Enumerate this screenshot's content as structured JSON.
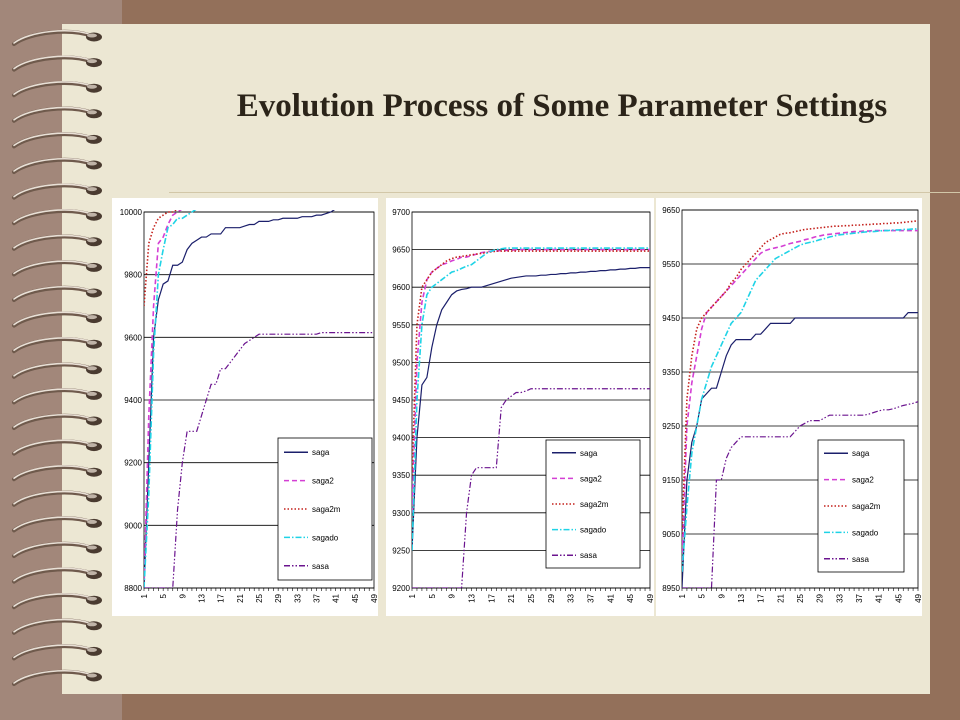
{
  "slide": {
    "title": "Evolution Process of Some Parameter Settings"
  },
  "colors": {
    "saga": "#1b1f6b",
    "saga2": "#d43fd4",
    "saga2m": "#c4211c",
    "sagado": "#1fd3e6",
    "sasa": "#6b148f"
  },
  "chart_data": [
    {
      "type": "line",
      "x": [
        1,
        2,
        3,
        4,
        5,
        6,
        7,
        8,
        9,
        10,
        11,
        12,
        13,
        14,
        15,
        16,
        17,
        18,
        19,
        20,
        21,
        22,
        23,
        24,
        25,
        26,
        27,
        28,
        29,
        30,
        31,
        32,
        33,
        34,
        35,
        36,
        37,
        38,
        39,
        40,
        41,
        42,
        43,
        44,
        45,
        46,
        47,
        48,
        49
      ],
      "x_ticks": [
        "1",
        "5",
        "9",
        "13",
        "17",
        "21",
        "25",
        "29",
        "33",
        "37",
        "41",
        "45",
        "49"
      ],
      "ylim": [
        8800,
        10000
      ],
      "y_ticks": [
        "8800",
        "9000",
        "9200",
        "9400",
        "9600",
        "9800",
        "10000"
      ],
      "legend": "lower-right",
      "grid": "horizontal",
      "series": [
        {
          "name": "saga",
          "style": "solid",
          "values": [
            8800,
            9200,
            9600,
            9720,
            9770,
            9780,
            9830,
            9830,
            9840,
            9880,
            9900,
            9910,
            9920,
            9920,
            9930,
            9930,
            9930,
            9950,
            9950,
            9950,
            9950,
            9955,
            9960,
            9960,
            9970,
            9970,
            9970,
            9975,
            9975,
            9980,
            9980,
            9980,
            9980,
            9985,
            9985,
            9985,
            9990,
            9990,
            9995,
            10000,
            10010,
            10020,
            10030,
            10030,
            10030,
            10030,
            10030,
            10030,
            10030
          ]
        },
        {
          "name": "saga2",
          "style": "dashed",
          "values": [
            8800,
            9350,
            9700,
            9900,
            9920,
            9960,
            9990,
            10000,
            10010,
            10020,
            10030,
            10040,
            10045,
            10045,
            10045,
            10045,
            10048,
            10048,
            10048,
            10048,
            10048,
            10048,
            10050,
            10050,
            10050,
            10052,
            10052,
            10052,
            10052,
            10052,
            10052,
            10052,
            10052,
            10052,
            10052,
            10052,
            10052,
            10052,
            10052,
            10052,
            10052,
            10052,
            10052,
            10052,
            10052,
            10052,
            10052,
            10052,
            10052
          ]
        },
        {
          "name": "saga2m",
          "style": "dotted",
          "values": [
            9700,
            9900,
            9950,
            9980,
            9990,
            10000,
            10000,
            10010,
            10010,
            10010,
            10020,
            10020,
            10020,
            10030,
            10030,
            10030,
            10030,
            10030,
            10030,
            10030,
            10030,
            10030,
            10035,
            10035,
            10035,
            10035,
            10035,
            10035,
            10035,
            10035,
            10035,
            10035,
            10035,
            10035,
            10035,
            10035,
            10035,
            10035,
            10035,
            10035,
            10035,
            10035,
            10035,
            10035,
            10035,
            10035,
            10035,
            10035,
            10035
          ]
        },
        {
          "name": "sagado",
          "style": "dashdot",
          "values": [
            8800,
            9100,
            9550,
            9800,
            9880,
            9950,
            9960,
            9980,
            9980,
            9990,
            10000,
            10010,
            10020,
            10030,
            10030,
            10040,
            10040,
            10045,
            10045,
            10045,
            10048,
            10048,
            10048,
            10050,
            10050,
            10052,
            10052,
            10052,
            10052,
            10052,
            10052,
            10052,
            10052,
            10052,
            10052,
            10052,
            10052,
            10052,
            10052,
            10052,
            10052,
            10052,
            10052,
            10052,
            10052,
            10052,
            10052,
            10052,
            10052
          ]
        },
        {
          "name": "sasa",
          "style": "dashdotdot",
          "values": [
            8800,
            8800,
            8800,
            8800,
            8800,
            8800,
            8800,
            9050,
            9200,
            9300,
            9300,
            9300,
            9350,
            9400,
            9450,
            9450,
            9500,
            9500,
            9520,
            9540,
            9560,
            9580,
            9590,
            9600,
            9610,
            9610,
            9610,
            9610,
            9610,
            9610,
            9610,
            9610,
            9610,
            9610,
            9610,
            9610,
            9610,
            9615,
            9615,
            9615,
            9615,
            9615,
            9615,
            9615,
            9615,
            9615,
            9615,
            9615,
            9615
          ]
        }
      ]
    },
    {
      "type": "line",
      "x": [
        1,
        2,
        3,
        4,
        5,
        6,
        7,
        8,
        9,
        10,
        11,
        12,
        13,
        14,
        15,
        16,
        17,
        18,
        19,
        20,
        21,
        22,
        23,
        24,
        25,
        26,
        27,
        28,
        29,
        30,
        31,
        32,
        33,
        34,
        35,
        36,
        37,
        38,
        39,
        40,
        41,
        42,
        43,
        44,
        45,
        46,
        47,
        48,
        49
      ],
      "x_ticks": [
        "1",
        "5",
        "9",
        "13",
        "17",
        "21",
        "25",
        "29",
        "33",
        "37",
        "41",
        "45",
        "49"
      ],
      "ylim": [
        9200,
        9700
      ],
      "y_ticks": [
        "9200",
        "9250",
        "9300",
        "9350",
        "9400",
        "9450",
        "9500",
        "9550",
        "9600",
        "9650",
        "9700"
      ],
      "legend": "lower-right",
      "grid": "horizontal",
      "series": [
        {
          "name": "saga",
          "style": "solid",
          "values": [
            9250,
            9400,
            9470,
            9480,
            9520,
            9550,
            9570,
            9580,
            9590,
            9595,
            9597,
            9598,
            9600,
            9600,
            9600,
            9602,
            9604,
            9606,
            9608,
            9610,
            9612,
            9613,
            9614,
            9615,
            9615,
            9615,
            9616,
            9616,
            9617,
            9617,
            9618,
            9618,
            9619,
            9619,
            9620,
            9620,
            9621,
            9621,
            9622,
            9622,
            9623,
            9623,
            9624,
            9624,
            9625,
            9625,
            9626,
            9626,
            9626
          ]
        },
        {
          "name": "saga2",
          "style": "dashed",
          "values": [
            9300,
            9500,
            9580,
            9610,
            9620,
            9625,
            9630,
            9632,
            9635,
            9637,
            9640,
            9640,
            9642,
            9644,
            9646,
            9647,
            9648,
            9648,
            9649,
            9649,
            9649,
            9650,
            9650,
            9650,
            9650,
            9650,
            9650,
            9650,
            9650,
            9650,
            9650,
            9650,
            9650,
            9650,
            9650,
            9650,
            9650,
            9650,
            9650,
            9650,
            9650,
            9650,
            9650,
            9650,
            9650,
            9650,
            9650,
            9650,
            9650
          ]
        },
        {
          "name": "saga2m",
          "style": "dotted",
          "values": [
            9350,
            9550,
            9600,
            9610,
            9620,
            9625,
            9630,
            9635,
            9638,
            9640,
            9641,
            9642,
            9643,
            9644,
            9645,
            9646,
            9647,
            9648,
            9648,
            9648,
            9648,
            9648,
            9648,
            9648,
            9648,
            9648,
            9648,
            9648,
            9648,
            9648,
            9648,
            9648,
            9648,
            9648,
            9648,
            9648,
            9648,
            9648,
            9648,
            9648,
            9648,
            9648,
            9648,
            9648,
            9648,
            9648,
            9648,
            9648,
            9648
          ]
        },
        {
          "name": "sagado",
          "style": "dashdot",
          "values": [
            9250,
            9450,
            9550,
            9590,
            9600,
            9605,
            9610,
            9615,
            9620,
            9622,
            9625,
            9628,
            9630,
            9635,
            9640,
            9645,
            9648,
            9650,
            9651,
            9652,
            9652,
            9652,
            9652,
            9652,
            9652,
            9652,
            9652,
            9652,
            9652,
            9652,
            9652,
            9652,
            9652,
            9652,
            9652,
            9652,
            9652,
            9652,
            9652,
            9652,
            9652,
            9652,
            9652,
            9652,
            9652,
            9652,
            9652,
            9652,
            9652
          ]
        },
        {
          "name": "sasa",
          "style": "dashdotdot",
          "values": [
            9200,
            9200,
            9200,
            9200,
            9200,
            9200,
            9200,
            9200,
            9200,
            9200,
            9200,
            9300,
            9350,
            9360,
            9360,
            9360,
            9360,
            9360,
            9440,
            9450,
            9455,
            9460,
            9460,
            9462,
            9465,
            9465,
            9465,
            9465,
            9465,
            9465,
            9465,
            9465,
            9465,
            9465,
            9465,
            9465,
            9465,
            9465,
            9465,
            9465,
            9465,
            9465,
            9465,
            9465,
            9465,
            9465,
            9465,
            9465,
            9465
          ]
        }
      ]
    },
    {
      "type": "line",
      "x": [
        1,
        2,
        3,
        4,
        5,
        6,
        7,
        8,
        9,
        10,
        11,
        12,
        13,
        14,
        15,
        16,
        17,
        18,
        19,
        20,
        21,
        22,
        23,
        24,
        25,
        26,
        27,
        28,
        29,
        30,
        31,
        32,
        33,
        34,
        35,
        36,
        37,
        38,
        39,
        40,
        41,
        42,
        43,
        44,
        45,
        46,
        47,
        48,
        49
      ],
      "x_ticks": [
        "1",
        "5",
        "9",
        "13",
        "17",
        "21",
        "25",
        "29",
        "33",
        "37",
        "41",
        "45",
        "49"
      ],
      "ylim": [
        8950,
        9650
      ],
      "y_ticks": [
        "8950",
        "9050",
        "9150",
        "9250",
        "9350",
        "9450",
        "9550",
        "9650"
      ],
      "legend": "lower-right",
      "grid": "horizontal",
      "series": [
        {
          "name": "saga",
          "style": "solid",
          "values": [
            8950,
            9150,
            9220,
            9250,
            9300,
            9310,
            9320,
            9320,
            9350,
            9380,
            9400,
            9410,
            9410,
            9410,
            9410,
            9420,
            9420,
            9430,
            9440,
            9440,
            9440,
            9440,
            9440,
            9450,
            9450,
            9450,
            9450,
            9450,
            9450,
            9450,
            9450,
            9450,
            9450,
            9450,
            9450,
            9450,
            9450,
            9450,
            9450,
            9450,
            9450,
            9450,
            9450,
            9450,
            9450,
            9450,
            9460,
            9460,
            9460
          ]
        },
        {
          "name": "saga2",
          "style": "dashed",
          "values": [
            9000,
            9250,
            9330,
            9380,
            9430,
            9460,
            9470,
            9480,
            9490,
            9500,
            9510,
            9520,
            9530,
            9540,
            9550,
            9560,
            9570,
            9575,
            9578,
            9580,
            9582,
            9585,
            9588,
            9590,
            9592,
            9595,
            9597,
            9600,
            9602,
            9604,
            9605,
            9606,
            9607,
            9608,
            9609,
            9610,
            9610,
            9611,
            9611,
            9612,
            9612,
            9612,
            9612,
            9612,
            9612,
            9612,
            9612,
            9612,
            9612
          ]
        },
        {
          "name": "saga2m",
          "style": "dotted",
          "values": [
            9050,
            9300,
            9380,
            9430,
            9450,
            9460,
            9470,
            9480,
            9490,
            9500,
            9515,
            9525,
            9540,
            9550,
            9560,
            9570,
            9580,
            9590,
            9595,
            9600,
            9605,
            9607,
            9608,
            9610,
            9612,
            9614,
            9615,
            9616,
            9617,
            9618,
            9619,
            9620,
            9620,
            9621,
            9621,
            9622,
            9622,
            9623,
            9623,
            9624,
            9624,
            9625,
            9625,
            9626,
            9626,
            9627,
            9628,
            9629,
            9630
          ]
        },
        {
          "name": "sagado",
          "style": "dashdot",
          "values": [
            8980,
            9100,
            9200,
            9250,
            9300,
            9330,
            9360,
            9380,
            9400,
            9420,
            9440,
            9450,
            9460,
            9480,
            9500,
            9520,
            9530,
            9540,
            9550,
            9560,
            9565,
            9570,
            9575,
            9580,
            9585,
            9588,
            9590,
            9592,
            9595,
            9597,
            9600,
            9602,
            9604,
            9605,
            9606,
            9607,
            9608,
            9609,
            9610,
            9610,
            9611,
            9612,
            9612,
            9613,
            9613,
            9614,
            9614,
            9615,
            9615
          ]
        },
        {
          "name": "sasa",
          "style": "dashdotdot",
          "values": [
            8950,
            8950,
            8950,
            8950,
            8950,
            8950,
            8950,
            9150,
            9150,
            9190,
            9210,
            9220,
            9230,
            9230,
            9230,
            9230,
            9230,
            9230,
            9230,
            9230,
            9230,
            9230,
            9230,
            9240,
            9250,
            9255,
            9260,
            9260,
            9260,
            9265,
            9270,
            9270,
            9270,
            9270,
            9270,
            9270,
            9270,
            9270,
            9272,
            9275,
            9278,
            9280,
            9280,
            9282,
            9285,
            9288,
            9290,
            9292,
            9295
          ]
        }
      ]
    }
  ]
}
